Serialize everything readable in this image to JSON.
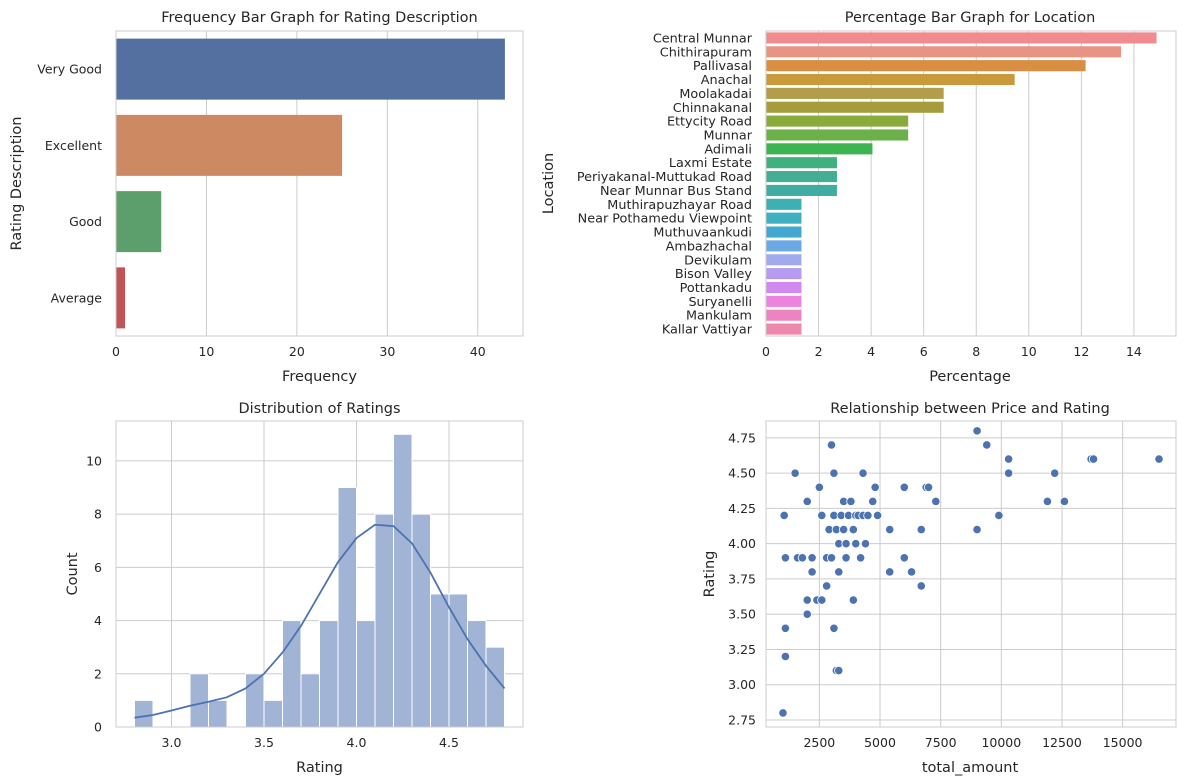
{
  "chart_data": [
    {
      "type": "bar",
      "orientation": "horizontal",
      "title": "Frequency Bar Graph for Rating Description",
      "xlabel": "Frequency",
      "ylabel": "Rating Description",
      "categories": [
        "Very Good",
        "Excellent",
        "Good",
        "Average"
      ],
      "values": [
        43,
        25,
        5,
        1
      ],
      "colors": [
        "#5470a0",
        "#cd8a62",
        "#5c9e6c",
        "#c05457"
      ],
      "xlim": [
        0,
        45
      ],
      "xticks": [
        0,
        10,
        20,
        30,
        40
      ],
      "grid": true
    },
    {
      "type": "bar",
      "orientation": "horizontal",
      "title": "Percentage Bar Graph for Location",
      "xlabel": "Percentage",
      "ylabel": "Location",
      "categories": [
        "Central Munnar",
        "Chithirapuram",
        "Pallivasal",
        "Anachal",
        "Moolakadai",
        "Chinnakanal",
        "Ettycity Road",
        "Munnar",
        "Adimali",
        "Laxmi Estate",
        "Periyakanal-Muttukad Road",
        "Near Munnar Bus Stand",
        "Muthirapuzhayar Road",
        "Near Pothamedu Viewpoint",
        "Muthuvaankudi",
        "Ambazhachal",
        "Devikulam",
        "Bison Valley",
        "Pottankadu",
        "Suryanelli",
        "Mankulam",
        "Kallar Vattiyar"
      ],
      "values": [
        14.86,
        13.51,
        12.16,
        9.46,
        6.76,
        6.76,
        5.41,
        5.41,
        4.05,
        2.7,
        2.7,
        2.7,
        1.35,
        1.35,
        1.35,
        1.35,
        1.35,
        1.35,
        1.35,
        1.35,
        1.35,
        1.35
      ],
      "colors": [
        "#f18b90",
        "#e89484",
        "#d98e44",
        "#c99a3c",
        "#b39d4a",
        "#a69c3b",
        "#89ab3c",
        "#6cb04a",
        "#3cb44f",
        "#40b07e",
        "#43ae92",
        "#41aca2",
        "#3fb0b1",
        "#40b0c0",
        "#43a7d0",
        "#6ba9e5",
        "#a1aaed",
        "#b79bf1",
        "#d289ef",
        "#ec83de",
        "#ee83c4",
        "#ed89ab"
      ],
      "xlim": [
        0,
        15.6
      ],
      "xticks": [
        0,
        2,
        4,
        6,
        8,
        10,
        12,
        14
      ],
      "grid": true
    },
    {
      "type": "histogram",
      "title": "Distribution of Ratings",
      "xlabel": "Rating",
      "ylabel": "Count",
      "bin_start": 2.8,
      "bin_width": 0.1,
      "values": [
        1,
        0,
        0,
        2,
        1,
        0,
        2,
        1,
        4,
        2,
        4,
        9,
        4,
        8,
        11,
        8,
        5,
        5,
        4,
        3
      ],
      "xlim": [
        2.7,
        4.9
      ],
      "ylim": [
        0,
        11.5
      ],
      "xticks": [
        3.0,
        3.5,
        4.0,
        4.5
      ],
      "yticks": [
        0,
        2,
        4,
        6,
        8,
        10
      ],
      "kde": {
        "x": [
          2.8,
          2.9,
          3.0,
          3.1,
          3.2,
          3.3,
          3.4,
          3.5,
          3.6,
          3.7,
          3.8,
          3.9,
          4.0,
          4.1,
          4.2,
          4.3,
          4.4,
          4.5,
          4.6,
          4.7,
          4.8
        ],
        "y": [
          0.35,
          0.45,
          0.62,
          0.8,
          0.95,
          1.12,
          1.45,
          2.0,
          2.8,
          3.8,
          5.0,
          6.2,
          7.1,
          7.6,
          7.55,
          6.9,
          5.8,
          4.5,
          3.3,
          2.3,
          1.45
        ]
      },
      "bar_color": "#a2b4d6",
      "line_color": "#4c72b0",
      "grid": true
    },
    {
      "type": "scatter",
      "title": "Relationship between Price and Rating",
      "xlabel": "total_amount",
      "ylabel": "Rating",
      "xlim": [
        300,
        17200
      ],
      "ylim": [
        2.7,
        4.87
      ],
      "xticks": [
        2500,
        5000,
        7500,
        10000,
        12500,
        15000
      ],
      "yticks": [
        2.75,
        3.0,
        3.25,
        3.5,
        3.75,
        4.0,
        4.25,
        4.5,
        4.75
      ],
      "points": [
        [
          1000,
          2.8
        ],
        [
          1100,
          3.2
        ],
        [
          1100,
          3.4
        ],
        [
          1050,
          4.2
        ],
        [
          1100,
          3.9
        ],
        [
          1500,
          4.5
        ],
        [
          1600,
          3.9
        ],
        [
          1800,
          3.9
        ],
        [
          2000,
          3.6
        ],
        [
          2000,
          3.5
        ],
        [
          2000,
          4.3
        ],
        [
          2200,
          3.8
        ],
        [
          2200,
          3.9
        ],
        [
          2400,
          3.6
        ],
        [
          2500,
          4.4
        ],
        [
          2600,
          3.6
        ],
        [
          2600,
          4.2
        ],
        [
          2800,
          3.7
        ],
        [
          2800,
          3.9
        ],
        [
          2900,
          4.1
        ],
        [
          3000,
          4.7
        ],
        [
          3000,
          3.9
        ],
        [
          3100,
          4.5
        ],
        [
          3100,
          4.2
        ],
        [
          3100,
          3.4
        ],
        [
          3200,
          4.1
        ],
        [
          3200,
          3.1
        ],
        [
          3300,
          3.1
        ],
        [
          3300,
          4.0
        ],
        [
          3300,
          3.8
        ],
        [
          3400,
          4.2
        ],
        [
          3500,
          4.3
        ],
        [
          3500,
          4.1
        ],
        [
          3600,
          3.9
        ],
        [
          3600,
          4.0
        ],
        [
          3700,
          4.2
        ],
        [
          3800,
          4.3
        ],
        [
          3900,
          3.6
        ],
        [
          3900,
          4.1
        ],
        [
          4000,
          4.0
        ],
        [
          4000,
          4.2
        ],
        [
          4100,
          4.2
        ],
        [
          4200,
          3.9
        ],
        [
          4300,
          4.5
        ],
        [
          4300,
          4.2
        ],
        [
          4400,
          4.0
        ],
        [
          4500,
          4.2
        ],
        [
          4700,
          4.3
        ],
        [
          4800,
          4.4
        ],
        [
          4900,
          4.2
        ],
        [
          5400,
          4.1
        ],
        [
          5400,
          3.8
        ],
        [
          6000,
          4.4
        ],
        [
          6000,
          3.9
        ],
        [
          6300,
          3.8
        ],
        [
          6700,
          4.1
        ],
        [
          6700,
          3.7
        ],
        [
          6900,
          4.4
        ],
        [
          7000,
          4.4
        ],
        [
          7300,
          4.3
        ],
        [
          9000,
          4.8
        ],
        [
          9000,
          4.1
        ],
        [
          9400,
          4.7
        ],
        [
          9900,
          4.2
        ],
        [
          10300,
          4.6
        ],
        [
          10300,
          4.5
        ],
        [
          11900,
          4.3
        ],
        [
          12200,
          4.5
        ],
        [
          12600,
          4.3
        ],
        [
          13700,
          4.6
        ],
        [
          13800,
          4.6
        ],
        [
          16500,
          4.6
        ]
      ],
      "point_color": "#4c72b0",
      "grid": true
    }
  ]
}
